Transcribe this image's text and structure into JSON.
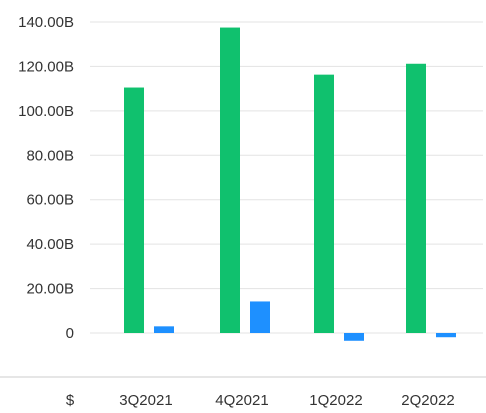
{
  "chart_data": {
    "type": "bar",
    "title": "",
    "xlabel": "",
    "ylabel": "",
    "currency_symbol": "$",
    "categories": [
      "3Q2021",
      "4Q2021",
      "1Q2022",
      "2Q2022"
    ],
    "series": [
      {
        "color": "#10c16e",
        "values": [
          110.5,
          137.5,
          116.3,
          121.2
        ]
      },
      {
        "color": "#1e90ff",
        "values": [
          3.0,
          14.2,
          -3.5,
          -1.9
        ]
      }
    ],
    "y_ticks": [
      {
        "value": 140,
        "label": "140.00B"
      },
      {
        "value": 120,
        "label": "120.00B"
      },
      {
        "value": 100,
        "label": "100.00B"
      },
      {
        "value": 80,
        "label": "80.00B"
      },
      {
        "value": 60,
        "label": "60.00B"
      },
      {
        "value": 40,
        "label": "40.00B"
      },
      {
        "value": 20,
        "label": "20.00B"
      },
      {
        "value": 0,
        "label": "0"
      }
    ],
    "ylim": [
      -4,
      140
    ],
    "grid": true,
    "legend": "none"
  }
}
